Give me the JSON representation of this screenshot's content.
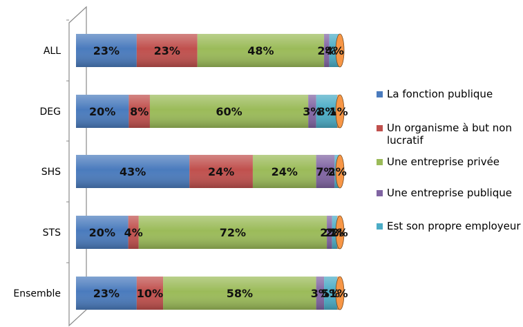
{
  "chart_data": {
    "type": "bar",
    "orientation": "horizontal",
    "stacked": "percent",
    "title": "",
    "xlabel": "",
    "ylabel": "",
    "grid": false,
    "legend_position": "right",
    "categories": [
      "ALL",
      "DEG",
      "SHS",
      "STS",
      "Ensemble"
    ],
    "series": [
      {
        "name": "La fonction publique",
        "color": "#4a7bbd",
        "values": [
          23,
          20,
          43,
          20,
          23
        ],
        "labels": [
          "23%",
          "20%",
          "43%",
          "20%",
          "23%"
        ]
      },
      {
        "name": "Un organisme à but non lucratif",
        "color": "#c0504d",
        "values": [
          23,
          8,
          24,
          4,
          10
        ],
        "labels": [
          "23%",
          "8%",
          "24%",
          "4%",
          "10%"
        ]
      },
      {
        "name": "Une entreprise privée",
        "color": "#9bbb59",
        "values": [
          48,
          60,
          24,
          72,
          58
        ],
        "labels": [
          "48%",
          "60%",
          "24%",
          "72%",
          "58%"
        ]
      },
      {
        "name": "Une entreprise publique",
        "color": "#8064a2",
        "values": [
          2,
          3,
          7,
          2,
          3
        ],
        "labels": [
          "2%",
          "3%",
          "7%",
          "2%",
          "3%"
        ]
      },
      {
        "name": "Est son propre employeur",
        "color": "#4bacc6",
        "values": [
          4,
          8,
          2,
          2,
          5
        ],
        "labels": [
          "4%",
          "8%",
          "2%",
          "2%",
          "5%"
        ]
      },
      {
        "name": "",
        "color": "#f79646",
        "values": [
          0,
          1,
          0,
          1,
          1
        ],
        "labels": [
          "",
          "1%",
          "",
          "1%",
          "1%"
        ]
      }
    ]
  }
}
